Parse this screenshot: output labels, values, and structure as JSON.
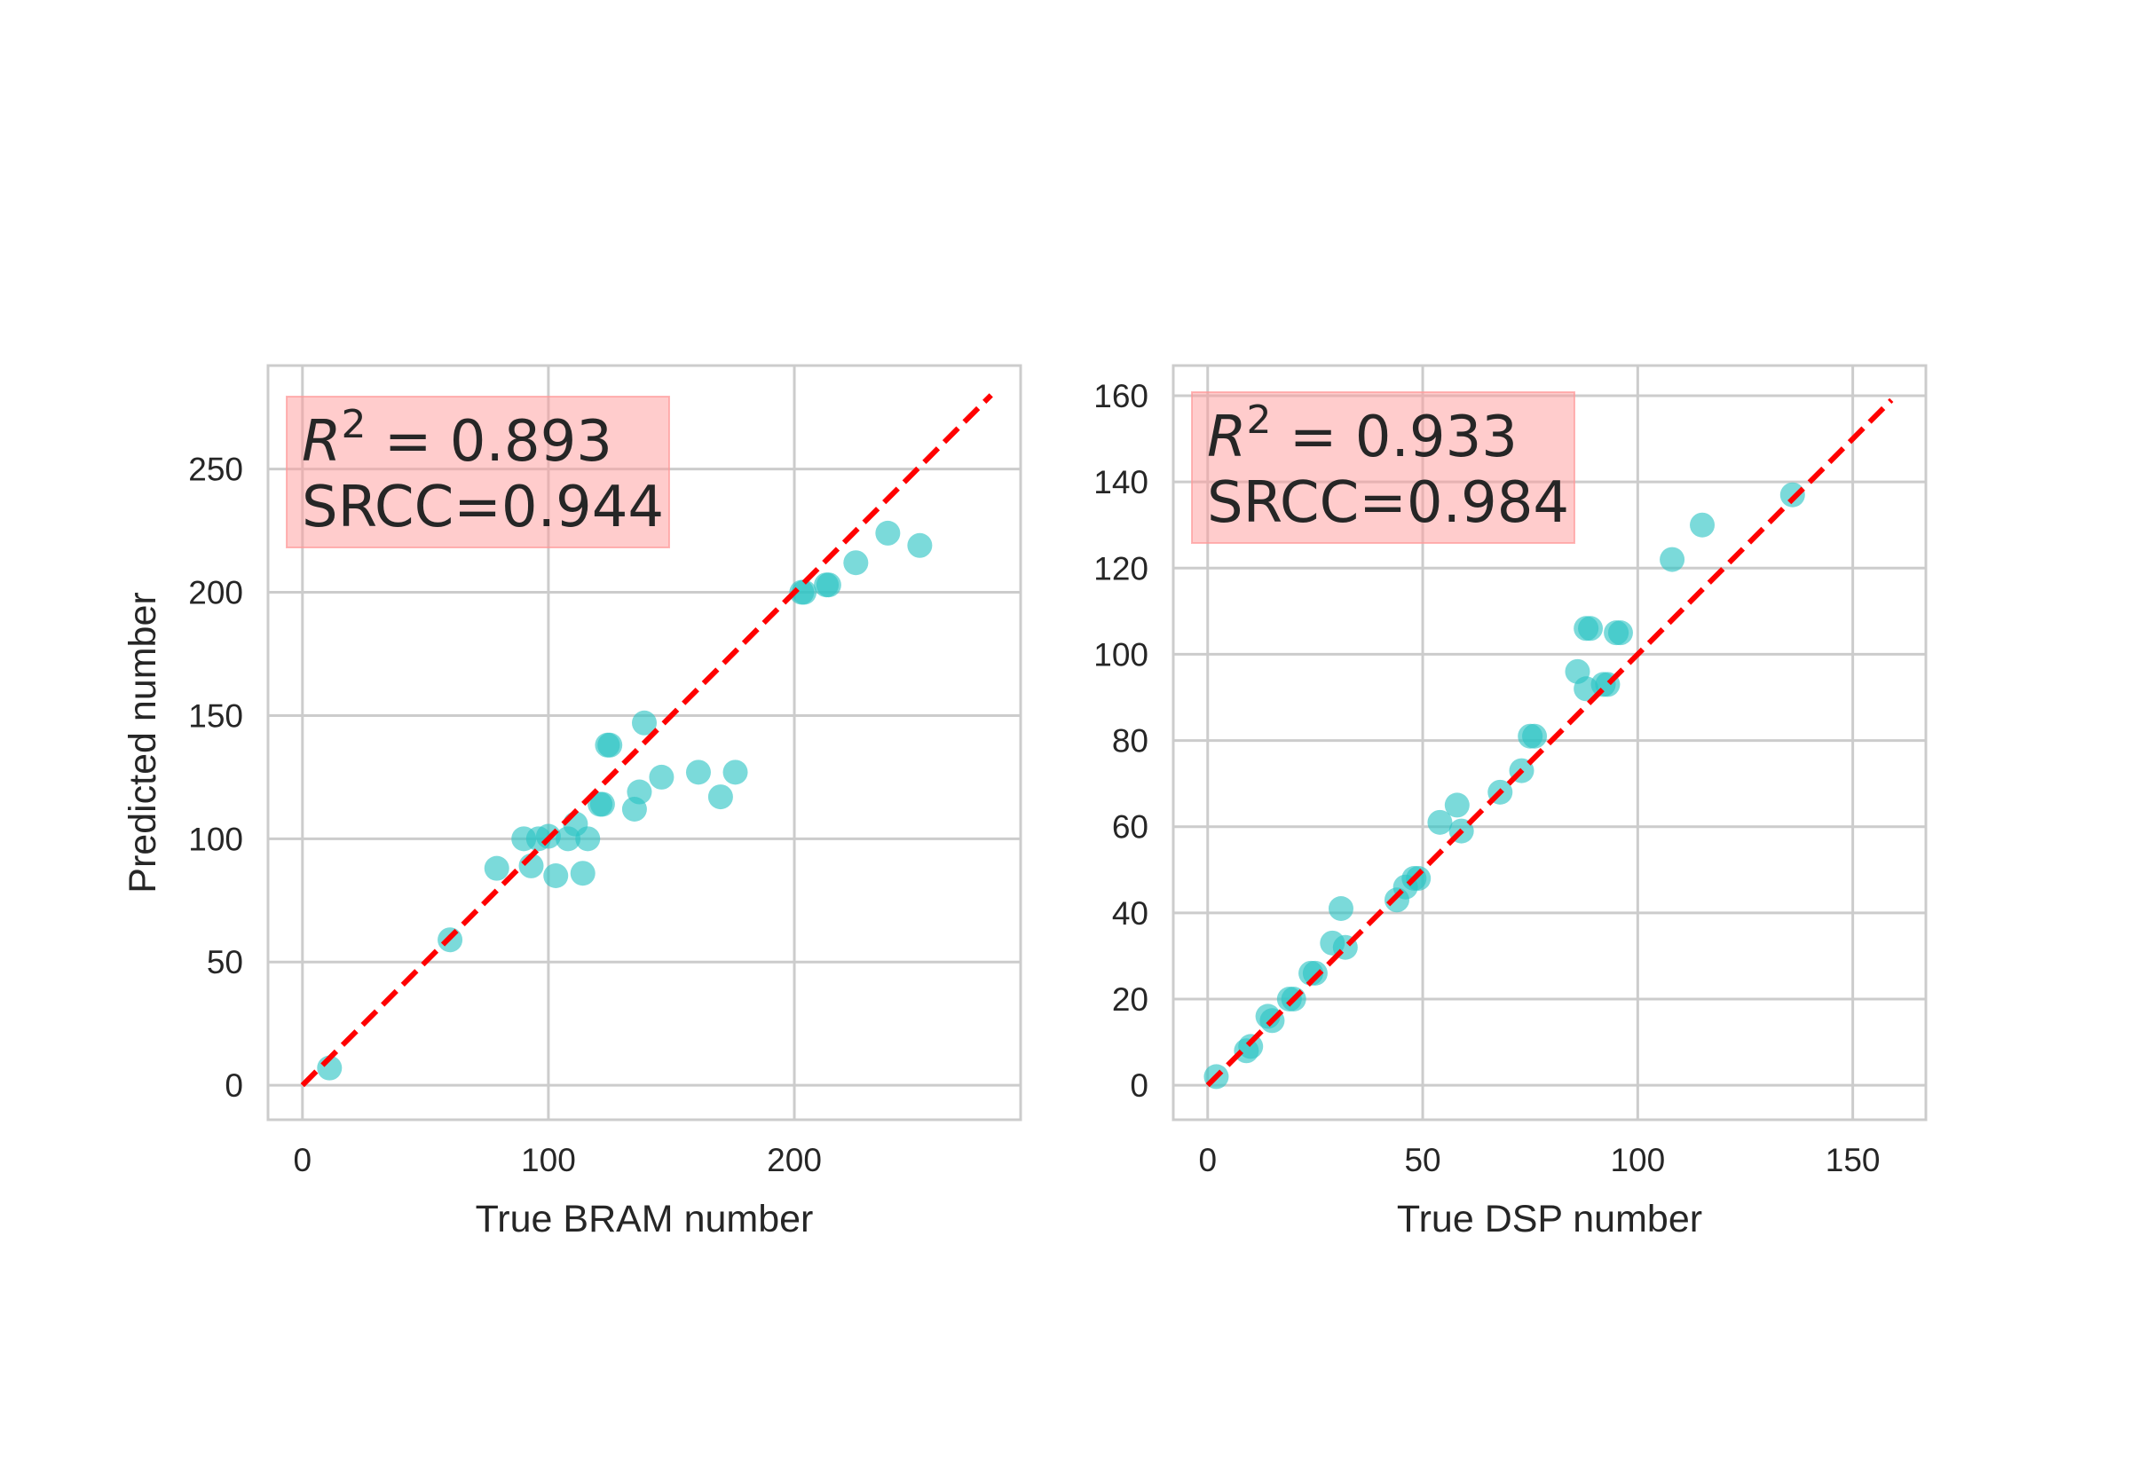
{
  "colors": {
    "point": "#2ac4c4",
    "diagonal": "#ff0000",
    "grid": "#cccccc",
    "annotation_box": "#ff9999"
  },
  "chart_data": [
    {
      "type": "scatter",
      "xlabel": "True BRAM number",
      "ylabel": "Predicted number",
      "xlim": [
        -14,
        292
      ],
      "ylim": [
        -14,
        292
      ],
      "xticks": [
        0,
        100,
        200
      ],
      "yticks": [
        0,
        50,
        100,
        150,
        200,
        250
      ],
      "tick_labels_x": [
        "0",
        "100",
        "200"
      ],
      "tick_labels_y": [
        "0",
        "50",
        "100",
        "150",
        "200",
        "250"
      ],
      "grid": true,
      "diagonal": [
        0,
        280
      ],
      "annotation": {
        "r2_symbol": "R",
        "r2_exponent": "2",
        "r2_text": " = 0.893",
        "srcc_text": "SRCC=0.944"
      },
      "points": [
        [
          11,
          7
        ],
        [
          60,
          59
        ],
        [
          79,
          88
        ],
        [
          90,
          100
        ],
        [
          93,
          89
        ],
        [
          96,
          100
        ],
        [
          100,
          101
        ],
        [
          103,
          85
        ],
        [
          108,
          100
        ],
        [
          111,
          106
        ],
        [
          114,
          86
        ],
        [
          116,
          100
        ],
        [
          121,
          114
        ],
        [
          122,
          114
        ],
        [
          124,
          138
        ],
        [
          125,
          138
        ],
        [
          135,
          112
        ],
        [
          137,
          119
        ],
        [
          139,
          147
        ],
        [
          146,
          125
        ],
        [
          161,
          127
        ],
        [
          170,
          117
        ],
        [
          176,
          127
        ],
        [
          203,
          200
        ],
        [
          204,
          200
        ],
        [
          213,
          203
        ],
        [
          214,
          203
        ],
        [
          225,
          212
        ],
        [
          238,
          224
        ],
        [
          251,
          219
        ]
      ]
    },
    {
      "type": "scatter",
      "xlabel": "True DSP number",
      "ylabel": "",
      "xlim": [
        -8,
        167
      ],
      "ylim": [
        -8,
        167
      ],
      "xticks": [
        0,
        50,
        100,
        150
      ],
      "yticks": [
        0,
        20,
        40,
        60,
        80,
        100,
        120,
        140,
        160
      ],
      "tick_labels_x": [
        "0",
        "50",
        "100",
        "150"
      ],
      "tick_labels_y": [
        "0",
        "20",
        "40",
        "60",
        "80",
        "100",
        "120",
        "140",
        "160"
      ],
      "grid": true,
      "diagonal": [
        0,
        159
      ],
      "annotation": {
        "r2_symbol": "R",
        "r2_exponent": "2",
        "r2_text": " = 0.933",
        "srcc_text": "SRCC=0.984"
      },
      "points": [
        [
          2,
          2
        ],
        [
          9,
          8
        ],
        [
          10,
          9
        ],
        [
          14,
          16
        ],
        [
          15,
          15
        ],
        [
          19,
          20
        ],
        [
          20,
          20
        ],
        [
          24,
          26
        ],
        [
          25,
          26
        ],
        [
          29,
          33
        ],
        [
          31,
          41
        ],
        [
          32,
          32
        ],
        [
          44,
          43
        ],
        [
          46,
          46
        ],
        [
          48,
          48
        ],
        [
          49,
          48
        ],
        [
          54,
          61
        ],
        [
          58,
          65
        ],
        [
          59,
          59
        ],
        [
          68,
          68
        ],
        [
          73,
          73
        ],
        [
          75,
          81
        ],
        [
          76,
          81
        ],
        [
          86,
          96
        ],
        [
          88,
          106
        ],
        [
          89,
          106
        ],
        [
          88,
          92
        ],
        [
          92,
          93
        ],
        [
          93,
          93
        ],
        [
          95,
          105
        ],
        [
          96,
          105
        ],
        [
          108,
          122
        ],
        [
          115,
          130
        ],
        [
          136,
          137
        ]
      ]
    }
  ]
}
